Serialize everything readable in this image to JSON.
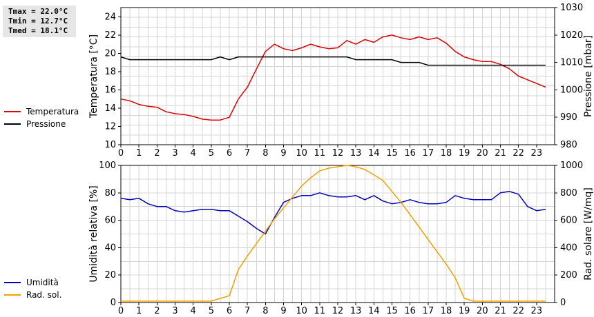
{
  "stats": {
    "tmax": "Tmax = 22.0°C",
    "tmin": "Tmin = 12.7°C",
    "tmed": "Tmed = 18.1°C"
  },
  "colors": {
    "temperature": "#dd0000",
    "pressure": "#000000",
    "humidity": "#0000bb",
    "radiation": "#f0a000",
    "grid": "#d4d4d4"
  },
  "chart_data": [
    {
      "type": "line",
      "xlabel": "",
      "ylabel": "Temperatura [°C]",
      "y2label": "Pressione [mbar]",
      "xlim": [
        0,
        24
      ],
      "ylim": [
        10,
        25
      ],
      "y2lim": [
        980,
        1030
      ],
      "x_ticks": [
        "0",
        "1",
        "2",
        "3",
        "4",
        "5",
        "6",
        "7",
        "8",
        "9",
        "10",
        "11",
        "12",
        "13",
        "14",
        "15",
        "16",
        "17",
        "18",
        "19",
        "20",
        "21",
        "22",
        "23"
      ],
      "y_ticks": [
        "10",
        "12",
        "14",
        "16",
        "18",
        "20",
        "22",
        "24"
      ],
      "y2_ticks": [
        "980",
        "990",
        "1000",
        "1010",
        "1020",
        "1030"
      ],
      "grid": true,
      "series": [
        {
          "name": "Temperatura",
          "axis": "left",
          "x": [
            0,
            0.5,
            1,
            1.5,
            2,
            2.5,
            3,
            3.5,
            4,
            4.5,
            5,
            5.5,
            6,
            6.5,
            7,
            7.5,
            8,
            8.5,
            9,
            9.5,
            10,
            10.5,
            11,
            11.5,
            12,
            12.5,
            13,
            13.5,
            14,
            14.5,
            15,
            15.5,
            16,
            16.5,
            17,
            17.5,
            18,
            18.5,
            19,
            19.5,
            20,
            20.5,
            21,
            21.5,
            22,
            22.5,
            23,
            23.5
          ],
          "values": [
            15.0,
            14.8,
            14.4,
            14.2,
            14.1,
            13.6,
            13.4,
            13.3,
            13.1,
            12.8,
            12.7,
            12.7,
            13.0,
            15.0,
            16.3,
            18.3,
            20.2,
            21.0,
            20.5,
            20.3,
            20.6,
            21.0,
            20.7,
            20.5,
            20.6,
            21.4,
            21.0,
            21.5,
            21.2,
            21.8,
            22.0,
            21.7,
            21.5,
            21.8,
            21.5,
            21.7,
            21.1,
            20.2,
            19.6,
            19.3,
            19.1,
            19.1,
            18.8,
            18.3,
            17.5,
            17.1,
            16.7,
            16.3
          ]
        },
        {
          "name": "Pressione",
          "axis": "right",
          "x": [
            0,
            0.5,
            1,
            1.5,
            2,
            2.5,
            3,
            3.5,
            4,
            4.5,
            5,
            5.5,
            6,
            6.5,
            7,
            7.5,
            8,
            8.5,
            9,
            9.5,
            10,
            10.5,
            11,
            11.5,
            12,
            12.5,
            13,
            13.5,
            14,
            14.5,
            15,
            15.5,
            16,
            16.5,
            17,
            17.5,
            18,
            18.5,
            19,
            19.5,
            20,
            20.5,
            21,
            21.5,
            22,
            22.5,
            23,
            23.5
          ],
          "values": [
            1012,
            1011,
            1011,
            1011,
            1011,
            1011,
            1011,
            1011,
            1011,
            1011,
            1011,
            1012,
            1011,
            1012,
            1012,
            1012,
            1012,
            1012,
            1012,
            1012,
            1012,
            1012,
            1012,
            1012,
            1012,
            1012,
            1011,
            1011,
            1011,
            1011,
            1011,
            1010,
            1010,
            1010,
            1009,
            1009,
            1009,
            1009,
            1009,
            1009,
            1009,
            1009,
            1009,
            1009,
            1009,
            1009,
            1009,
            1009
          ]
        }
      ]
    },
    {
      "type": "line",
      "xlabel": "",
      "ylabel": "Umidità relativa [%]",
      "y2label": "Rad. solare [W/mq]",
      "xlim": [
        0,
        24
      ],
      "ylim": [
        0,
        100
      ],
      "y2lim": [
        0,
        1000
      ],
      "x_ticks": [
        "0",
        "1",
        "2",
        "3",
        "4",
        "5",
        "6",
        "7",
        "8",
        "9",
        "10",
        "11",
        "12",
        "13",
        "14",
        "15",
        "16",
        "17",
        "18",
        "19",
        "20",
        "21",
        "22",
        "23"
      ],
      "y_ticks": [
        "0",
        "20",
        "40",
        "60",
        "80",
        "100"
      ],
      "y2_ticks": [
        "0",
        "200",
        "400",
        "600",
        "800",
        "1000"
      ],
      "grid": true,
      "series": [
        {
          "name": "Umidità",
          "axis": "left",
          "x": [
            0,
            0.5,
            1,
            1.5,
            2,
            2.5,
            3,
            3.5,
            4,
            4.5,
            5,
            5.5,
            6,
            6.5,
            7,
            7.5,
            8,
            8.5,
            9,
            9.5,
            10,
            10.5,
            11,
            11.5,
            12,
            12.5,
            13,
            13.5,
            14,
            14.5,
            15,
            15.5,
            16,
            16.5,
            17,
            17.5,
            18,
            18.5,
            19,
            19.5,
            20,
            20.5,
            21,
            21.5,
            22,
            22.5,
            23,
            23.5
          ],
          "values": [
            76,
            75,
            76,
            72,
            70,
            70,
            67,
            66,
            67,
            68,
            68,
            67,
            67,
            63,
            59,
            54,
            50,
            62,
            73,
            76,
            78,
            78,
            80,
            78,
            77,
            77,
            78,
            75,
            78,
            74,
            72,
            73,
            75,
            73,
            72,
            72,
            73,
            78,
            76,
            75,
            75,
            75,
            80,
            81,
            79,
            70,
            67,
            68
          ]
        },
        {
          "name": "Rad. sol.",
          "axis": "right",
          "x": [
            0,
            0.5,
            1,
            1.5,
            2,
            2.5,
            3,
            3.5,
            4,
            4.5,
            5,
            5.5,
            6,
            6.5,
            7,
            7.5,
            8,
            8.5,
            9,
            9.5,
            10,
            10.5,
            11,
            11.5,
            12,
            12.5,
            13,
            13.5,
            14,
            14.5,
            15,
            15.5,
            16,
            16.5,
            17,
            17.5,
            18,
            18.5,
            19,
            19.5,
            20,
            20.5,
            21,
            21.5,
            22,
            22.5,
            23,
            23.5
          ],
          "values": [
            10,
            10,
            10,
            10,
            10,
            10,
            10,
            10,
            10,
            10,
            10,
            30,
            50,
            240,
            340,
            430,
            520,
            610,
            690,
            770,
            850,
            910,
            960,
            980,
            990,
            1000,
            990,
            970,
            930,
            890,
            810,
            730,
            640,
            550,
            460,
            370,
            280,
            180,
            30,
            10,
            10,
            10,
            10,
            10,
            10,
            10,
            10,
            10
          ]
        }
      ]
    }
  ]
}
